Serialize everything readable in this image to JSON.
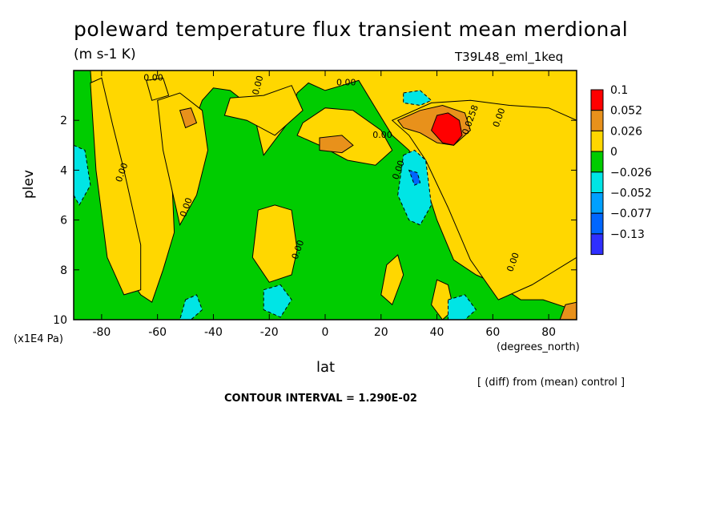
{
  "chart_data": {
    "type": "heatmap",
    "title": "poleward temperature flux transient mean merdional",
    "units": "(m s-1 K)",
    "run_label": "T39L48_eml_1keq",
    "xlabel": "lat",
    "x_units": "(degrees_north)",
    "ylabel": "plev",
    "y_units": "(x1E4 Pa)",
    "xlim": [
      -90,
      90
    ],
    "ylim": [
      10,
      0
    ],
    "x_ticks": [
      "-80",
      "-60",
      "-40",
      "-20",
      "0",
      "20",
      "40",
      "60",
      "80"
    ],
    "x_tick_values": [
      -80,
      -60,
      -40,
      -20,
      0,
      20,
      40,
      60,
      80
    ],
    "y_ticks": [
      "2",
      "4",
      "6",
      "8",
      "10"
    ],
    "y_tick_values": [
      2,
      4,
      6,
      8,
      10
    ],
    "legend": {
      "labels": [
        "0.1",
        "0.052",
        "0.026",
        "0",
        "−0.026",
        "−0.052",
        "−0.077",
        "−0.13"
      ],
      "colors": [
        "#ff0000",
        "#e8911b",
        "#ffd700",
        "#00cc00",
        "#00e5e5",
        "#00a0ff",
        "#0066ff",
        "#2f2fff"
      ]
    },
    "contour_labels": [
      "0.00",
      "0.00",
      "0.00",
      "0.00",
      "0.00",
      "0.00",
      "0.00",
      "0.00",
      "0.00",
      "0.00",
      "0.0258"
    ],
    "diff_note": "[ (diff) from (mean) control ]",
    "contour_interval": "CONTOUR INTERVAL = 1.290E-02",
    "regions": [
      {
        "level": "negative",
        "x": [
          -90,
          -90,
          -84,
          -82,
          -78,
          -72,
          -66,
          -62,
          -58,
          -54,
          -55,
          -52,
          -46,
          -44,
          -40,
          -34,
          -26,
          -22,
          -14,
          -10,
          -6,
          0,
          6,
          12,
          18,
          24,
          30,
          36,
          40,
          46,
          54,
          62,
          70,
          78,
          86,
          90,
          90
        ],
        "y": [
          10,
          0,
          0,
          3,
          6,
          8,
          9,
          9.3,
          8,
          6.5,
          4,
          2,
          1.8,
          1.2,
          0.7,
          0.8,
          1.5,
          3.4,
          2.2,
          0.9,
          0.5,
          0.8,
          0.6,
          0.4,
          1.5,
          2.6,
          3.2,
          4.6,
          6,
          7.6,
          8.2,
          8.6,
          9.2,
          9.2,
          9.5,
          9.6,
          10
        ]
      },
      {
        "level": "positive",
        "x": [
          -84,
          -80,
          -76,
          -72,
          -66,
          -66,
          -72,
          -78,
          -82
        ],
        "y": [
          0.5,
          0.3,
          2.2,
          4,
          7,
          8.8,
          9,
          7.5,
          4
        ]
      },
      {
        "level": "positive",
        "x": [
          -60,
          -52,
          -44,
          -42,
          -46,
          -52,
          -58
        ],
        "y": [
          1.2,
          0.9,
          1.6,
          3.2,
          5,
          6.2,
          3.2
        ]
      },
      {
        "level": "positive",
        "x": [
          -34,
          -22,
          -12,
          -8,
          -18,
          -28,
          -36
        ],
        "y": [
          1.1,
          1.0,
          0.6,
          1.6,
          2.6,
          2.0,
          1.8
        ]
      },
      {
        "level": "positive",
        "x": [
          -8,
          0,
          10,
          20,
          24,
          18,
          8,
          -2,
          -10
        ],
        "y": [
          2.1,
          1.5,
          1.6,
          2.4,
          3.2,
          3.8,
          3.6,
          3.0,
          2.6
        ]
      },
      {
        "level": "positive",
        "x": [
          -24,
          -18,
          -12,
          -10,
          -12,
          -20,
          -26
        ],
        "y": [
          5.6,
          5.4,
          5.6,
          7.2,
          8.2,
          8.5,
          7.5
        ]
      },
      {
        "level": "positive",
        "x": [
          24,
          38,
          52,
          66,
          80,
          90,
          90,
          74,
          62,
          52,
          44,
          36,
          30
        ],
        "y": [
          2.0,
          1.3,
          1.2,
          1.4,
          1.5,
          2.0,
          7.5,
          8.6,
          9.2,
          7.6,
          5.5,
          3.6,
          2.6
        ]
      },
      {
        "level": "positive",
        "x": [
          22,
          26,
          28,
          24,
          20
        ],
        "y": [
          7.8,
          7.4,
          8.2,
          9.4,
          9.0
        ]
      },
      {
        "level": "positive",
        "x": [
          40,
          44,
          46,
          42,
          38
        ],
        "y": [
          8.4,
          8.6,
          9.6,
          10,
          9.4
        ]
      },
      {
        "level": "positive",
        "x": [
          -64,
          -58,
          -56,
          -62
        ],
        "y": [
          0.4,
          0.3,
          1.0,
          1.2
        ]
      },
      {
        "level": "low",
        "x": [
          -90,
          -86,
          -84,
          -88,
          -90
        ],
        "y": [
          3.0,
          3.2,
          4.6,
          5.4,
          5.0
        ]
      },
      {
        "level": "low",
        "x": [
          28,
          32,
          36,
          38,
          34,
          30,
          26
        ],
        "y": [
          3.4,
          3.2,
          3.6,
          5.4,
          6.2,
          6.0,
          5.0
        ]
      },
      {
        "level": "low",
        "x": [
          -22,
          -16,
          -12,
          -16,
          -22
        ],
        "y": [
          8.8,
          8.6,
          9.2,
          9.9,
          9.6
        ]
      },
      {
        "level": "low",
        "x": [
          44,
          50,
          54,
          50,
          44
        ],
        "y": [
          9.2,
          9.0,
          9.6,
          10,
          10
        ]
      },
      {
        "level": "low",
        "x": [
          -50,
          -46,
          -44,
          -48,
          -52
        ],
        "y": [
          9.2,
          9.0,
          9.6,
          10,
          10
        ]
      },
      {
        "level": "low",
        "x": [
          28,
          34,
          38,
          34,
          28
        ],
        "y": [
          0.9,
          0.8,
          1.2,
          1.4,
          1.3
        ]
      },
      {
        "level": "high",
        "x": [
          -52,
          -48,
          -46,
          -50
        ],
        "y": [
          1.6,
          1.5,
          2.1,
          2.3
        ]
      },
      {
        "level": "high",
        "x": [
          -2,
          6,
          10,
          6,
          -2
        ],
        "y": [
          2.7,
          2.6,
          3.0,
          3.3,
          3.2
        ]
      },
      {
        "level": "high",
        "x": [
          26,
          34,
          42,
          50,
          52,
          46,
          40,
          34,
          28
        ],
        "y": [
          2.0,
          1.6,
          1.4,
          1.7,
          2.4,
          3.0,
          2.9,
          2.5,
          2.3
        ]
      },
      {
        "level": "high",
        "x": [
          86,
          90,
          90,
          84
        ],
        "y": [
          9.4,
          9.3,
          10,
          10
        ]
      },
      {
        "level": "max",
        "x": [
          40,
          44,
          48,
          49,
          46,
          42,
          38
        ],
        "y": [
          1.8,
          1.7,
          2.0,
          2.6,
          3.0,
          2.9,
          2.4
        ]
      },
      {
        "level": "min",
        "x": [
          30,
          33,
          34,
          32
        ],
        "y": [
          4.0,
          4.1,
          4.5,
          4.6
        ]
      }
    ]
  }
}
